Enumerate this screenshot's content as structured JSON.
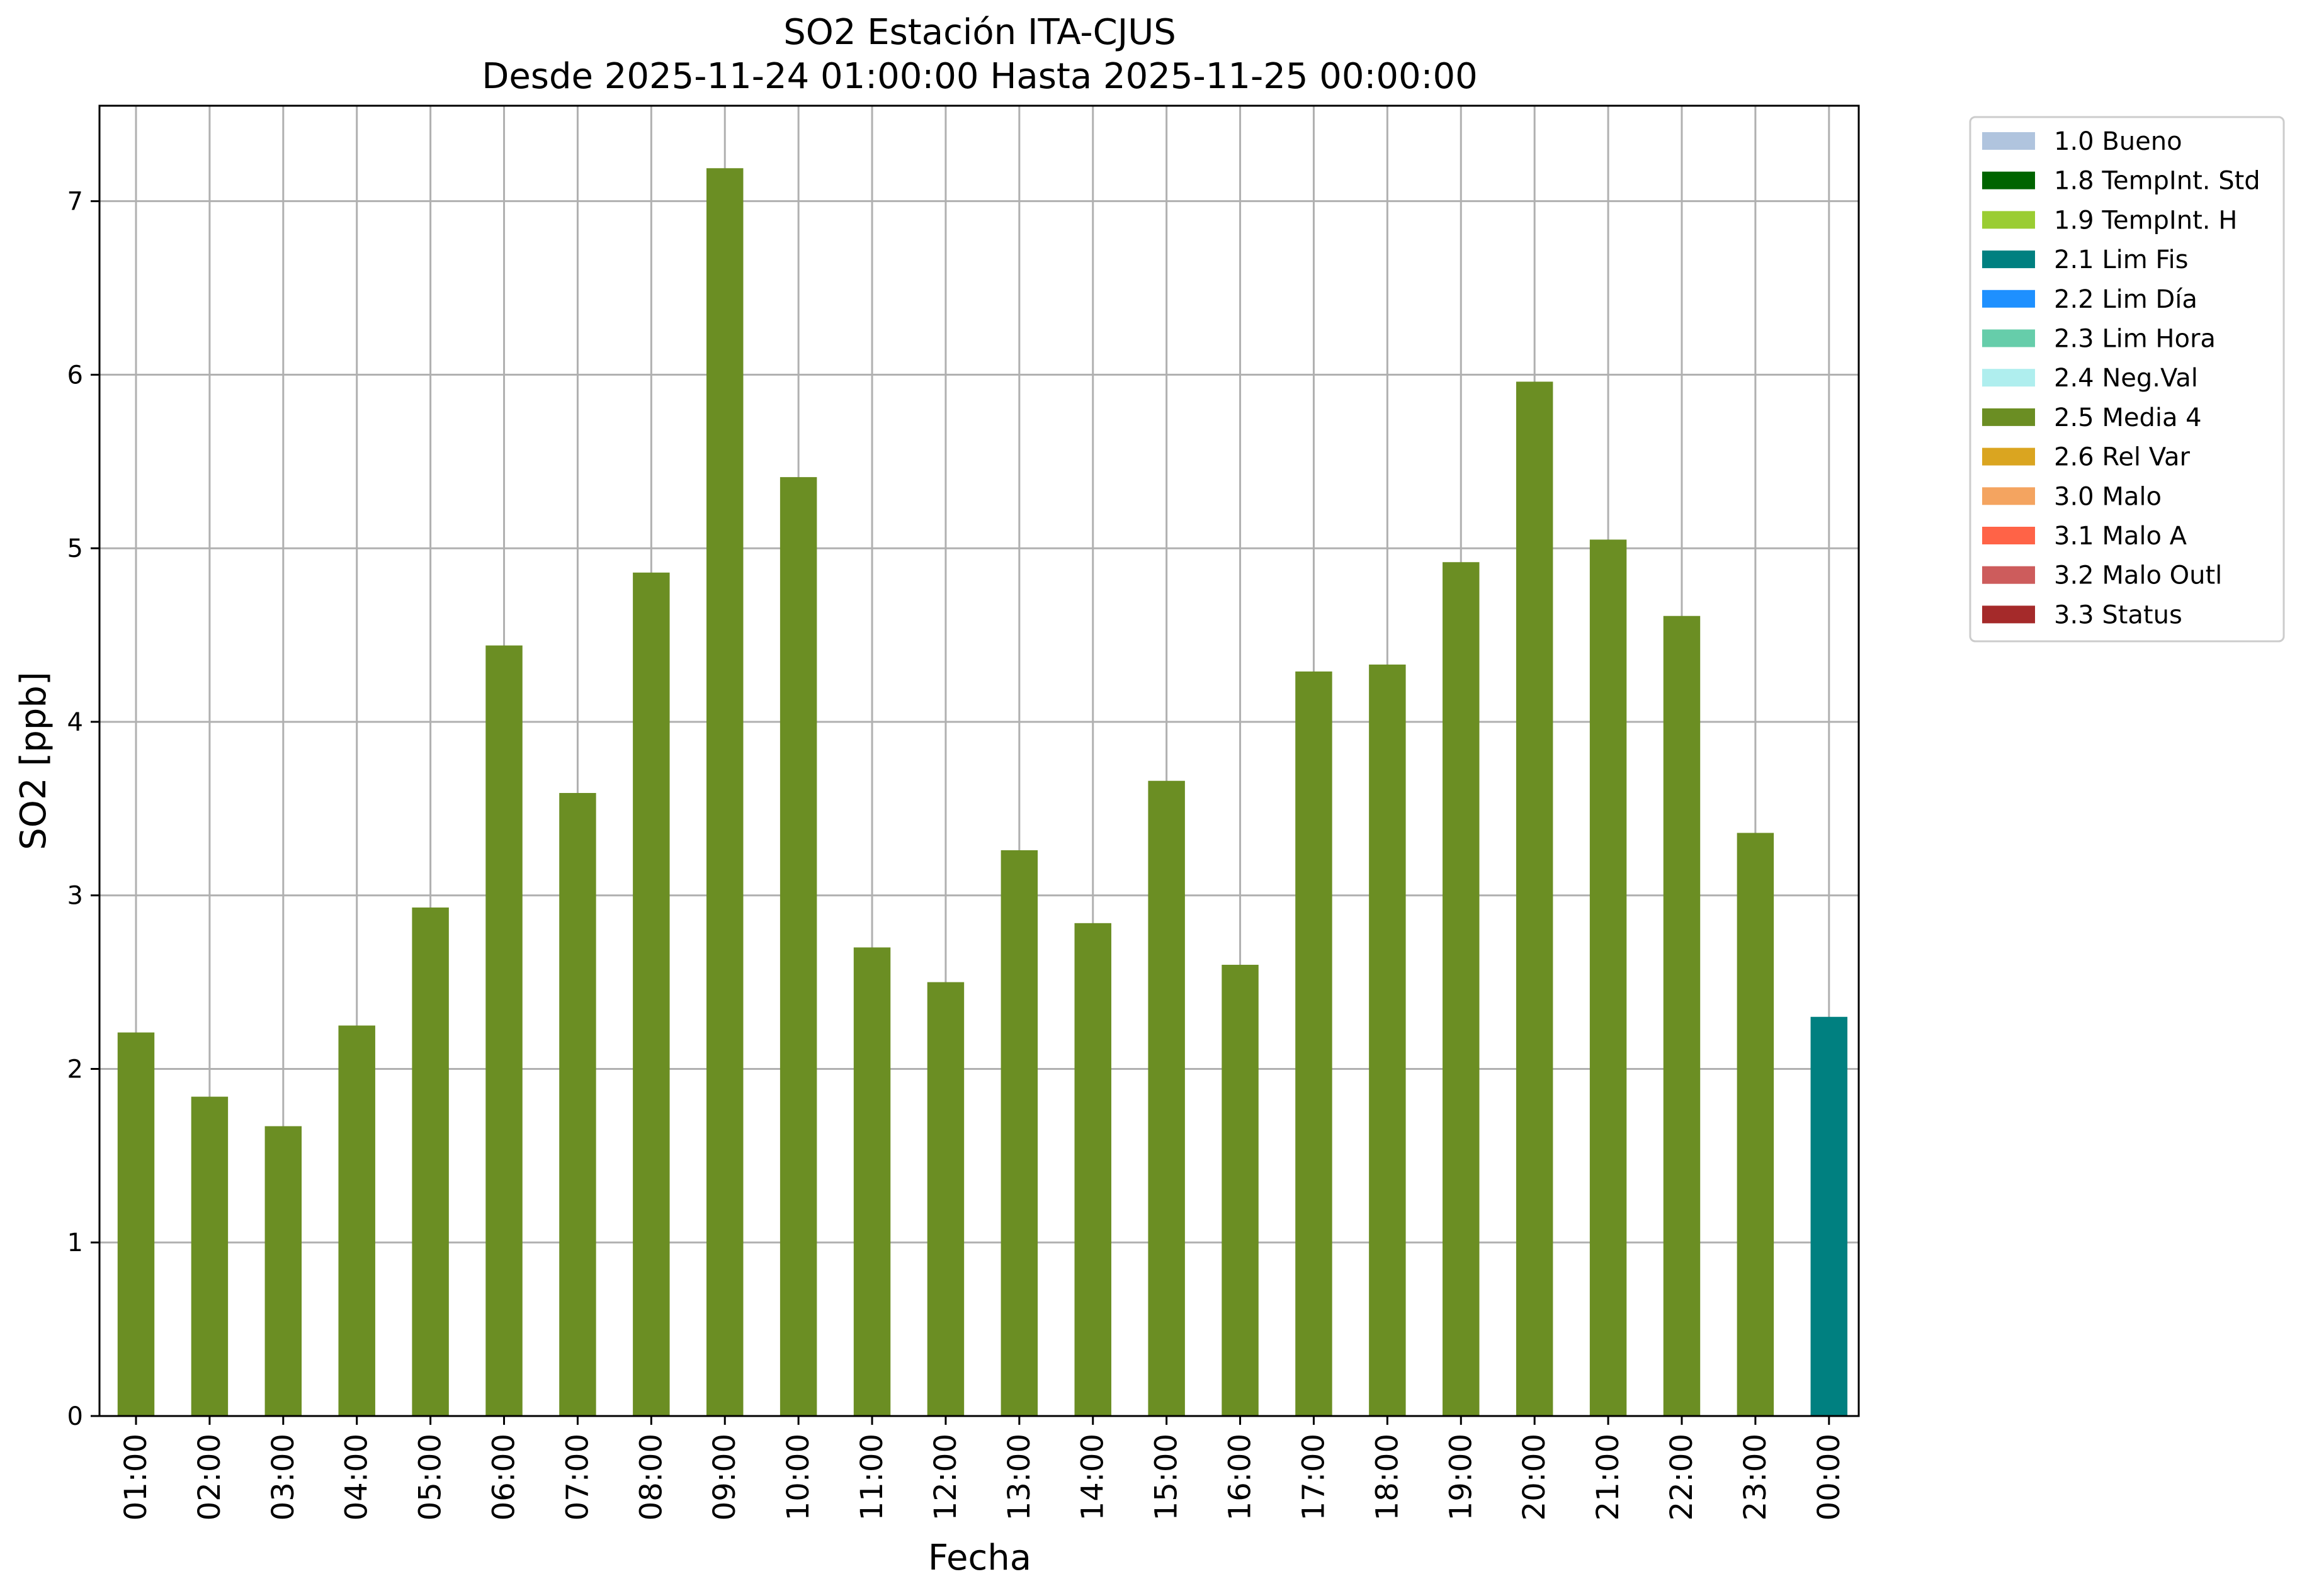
{
  "chart_data": {
    "type": "bar",
    "title": "SO2 Estación ITA-CJUS",
    "subtitle": "Desde 2025-11-24 01:00:00 Hasta 2025-11-25 00:00:00",
    "xlabel": "Fecha",
    "ylabel": "SO2 [ppb]",
    "ylim": [
      0,
      7.55
    ],
    "yticks": [
      "0",
      "1",
      "2",
      "3",
      "4",
      "5",
      "6",
      "7"
    ],
    "grid": true,
    "legend_position": "outside-top-right",
    "categories": [
      "01:00",
      "02:00",
      "03:00",
      "04:00",
      "05:00",
      "06:00",
      "07:00",
      "08:00",
      "09:00",
      "10:00",
      "11:00",
      "12:00",
      "13:00",
      "14:00",
      "15:00",
      "16:00",
      "17:00",
      "18:00",
      "19:00",
      "20:00",
      "21:00",
      "22:00",
      "23:00",
      "00:00"
    ],
    "values": [
      2.21,
      1.84,
      1.67,
      2.25,
      2.93,
      4.44,
      3.59,
      4.86,
      7.19,
      5.41,
      2.7,
      2.5,
      3.26,
      2.84,
      3.66,
      2.6,
      4.29,
      4.33,
      4.92,
      5.96,
      5.05,
      4.61,
      3.36,
      2.3
    ],
    "flags": [
      "2.5 Media 4",
      "2.5 Media 4",
      "2.5 Media 4",
      "2.5 Media 4",
      "2.5 Media 4",
      "2.5 Media 4",
      "2.5 Media 4",
      "2.5 Media 4",
      "2.5 Media 4",
      "2.5 Media 4",
      "2.5 Media 4",
      "2.5 Media 4",
      "2.5 Media 4",
      "2.5 Media 4",
      "2.5 Media 4",
      "2.5 Media 4",
      "2.5 Media 4",
      "2.5 Media 4",
      "2.5 Media 4",
      "2.5 Media 4",
      "2.5 Media 4",
      "2.5 Media 4",
      "2.5 Media 4",
      "2.1 Lim Fis"
    ],
    "legend": [
      {
        "label": "1.0 Bueno",
        "color": "#b0c4de"
      },
      {
        "label": "1.8 TempInt. Std",
        "color": "#006400"
      },
      {
        "label": "1.9 TempInt. H",
        "color": "#9acd32"
      },
      {
        "label": "2.1 Lim Fis",
        "color": "#008080"
      },
      {
        "label": "2.2 Lim Día",
        "color": "#1e90ff"
      },
      {
        "label": "2.3 Lim Hora",
        "color": "#66cdaa"
      },
      {
        "label": "2.4 Neg.Val",
        "color": "#afeeee"
      },
      {
        "label": "2.5 Media 4",
        "color": "#6b8e23"
      },
      {
        "label": "2.6 Rel Var",
        "color": "#daa520"
      },
      {
        "label": "3.0 Malo",
        "color": "#f4a460"
      },
      {
        "label": "3.1 Malo A",
        "color": "#ff6347"
      },
      {
        "label": "3.2 Malo Outl",
        "color": "#cd5c5c"
      },
      {
        "label": "3.3 Status",
        "color": "#a52a2a"
      }
    ]
  }
}
